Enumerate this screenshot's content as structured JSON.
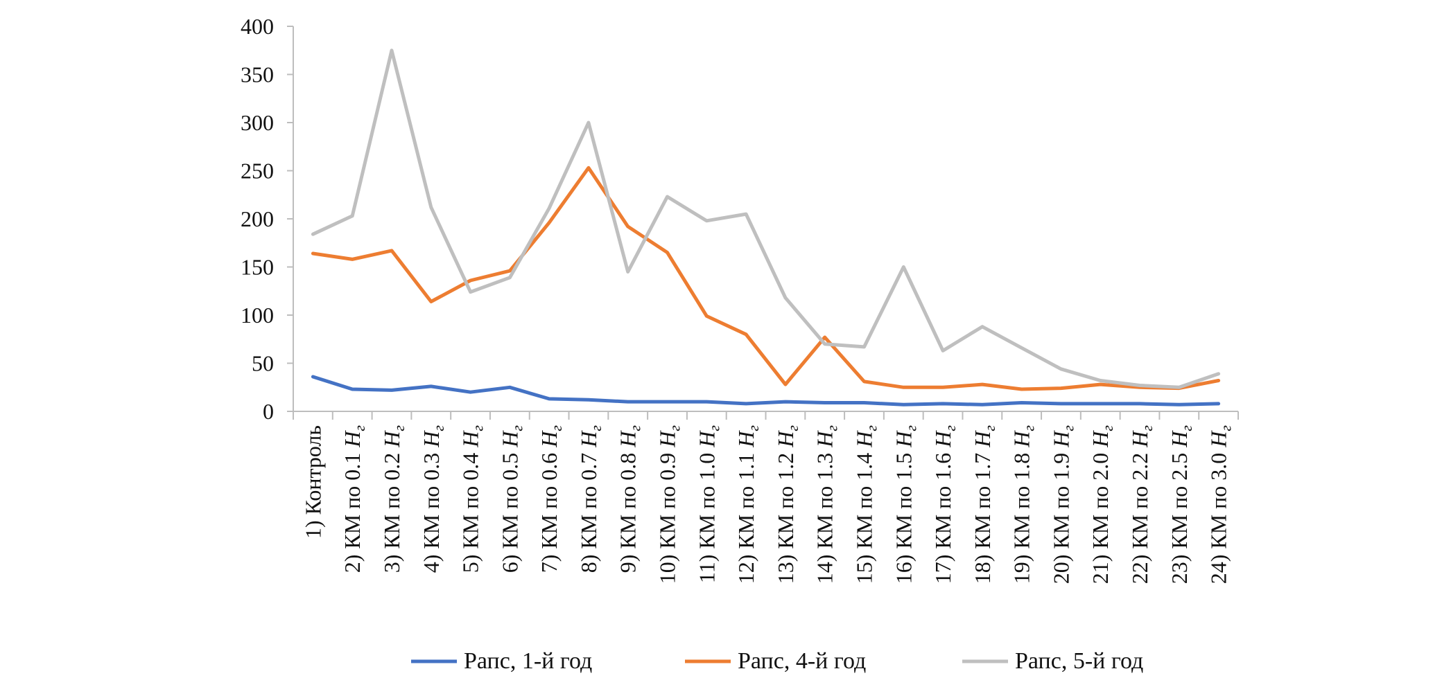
{
  "chart_data": {
    "type": "line",
    "title": "",
    "xlabel": "",
    "ylabel": "",
    "ylim": [
      0,
      400
    ],
    "yticks": [
      "0",
      "50",
      "100",
      "150",
      "200",
      "250",
      "300",
      "350",
      "400"
    ],
    "grid": false,
    "legend_position": "bottom",
    "categories": [
      {
        "main": "1) Контроль",
        "var": "",
        "sub": ""
      },
      {
        "main": "2) КМ по 0.1 ",
        "var": "H",
        "sub": "г"
      },
      {
        "main": "3) КМ по 0.2 ",
        "var": "H",
        "sub": "г"
      },
      {
        "main": "4) КМ по 0.3 ",
        "var": "H",
        "sub": "г"
      },
      {
        "main": "5) КМ по 0.4 ",
        "var": "H",
        "sub": "г"
      },
      {
        "main": "6) КМ по 0.5 ",
        "var": "H",
        "sub": "г"
      },
      {
        "main": "7) КМ по 0.6 ",
        "var": "H",
        "sub": "г"
      },
      {
        "main": "8) КМ по 0.7 ",
        "var": "H",
        "sub": "г"
      },
      {
        "main": "9) КМ по 0.8 ",
        "var": "H",
        "sub": "г"
      },
      {
        "main": "10) КМ по 0.9 ",
        "var": "H",
        "sub": "г"
      },
      {
        "main": "11) КМ по 1.0 ",
        "var": "H",
        "sub": "г"
      },
      {
        "main": "12) КМ по 1.1 ",
        "var": "H",
        "sub": "г"
      },
      {
        "main": "13) КМ по 1.2 ",
        "var": "H",
        "sub": "г"
      },
      {
        "main": "14) КМ по 1.3 ",
        "var": "H",
        "sub": "г"
      },
      {
        "main": "15) КМ по 1.4 ",
        "var": "H",
        "sub": "г"
      },
      {
        "main": "16) КМ по 1.5 ",
        "var": "H",
        "sub": "г"
      },
      {
        "main": "17) КМ по 1.6 ",
        "var": "H",
        "sub": "г"
      },
      {
        "main": "18) КМ по 1.7 ",
        "var": "H",
        "sub": "г"
      },
      {
        "main": "19) КМ по 1.8 ",
        "var": "H",
        "sub": "г"
      },
      {
        "main": "20) КМ по 1.9 ",
        "var": "H",
        "sub": "г"
      },
      {
        "main": "21) КМ по 2.0 ",
        "var": "H",
        "sub": "г"
      },
      {
        "main": "22) КМ по 2.2 ",
        "var": "H",
        "sub": "г"
      },
      {
        "main": "23) КМ по 2.5 ",
        "var": "H",
        "sub": "г"
      },
      {
        "main": "24) КМ по 3.0 ",
        "var": "H",
        "sub": "г"
      }
    ],
    "series": [
      {
        "name": "Рапс, 1-й год",
        "color": "#4472c4",
        "values": [
          36,
          23,
          22,
          26,
          20,
          25,
          13,
          12,
          10,
          10,
          10,
          8,
          10,
          9,
          9,
          7,
          8,
          7,
          9,
          8,
          8,
          8,
          7,
          8
        ]
      },
      {
        "name": "Рапс, 4-й год",
        "color": "#ed7d31",
        "values": [
          164,
          158,
          167,
          114,
          136,
          146,
          196,
          253,
          192,
          165,
          99,
          80,
          28,
          77,
          31,
          25,
          25,
          28,
          23,
          24,
          28,
          25,
          24,
          32
        ]
      },
      {
        "name": "Рапс, 5-й год",
        "color": "#bfbfbf",
        "values": [
          184,
          203,
          375,
          212,
          124,
          139,
          211,
          300,
          145,
          223,
          198,
          205,
          118,
          70,
          67,
          150,
          63,
          88,
          66,
          44,
          32,
          27,
          25,
          39
        ]
      }
    ]
  }
}
